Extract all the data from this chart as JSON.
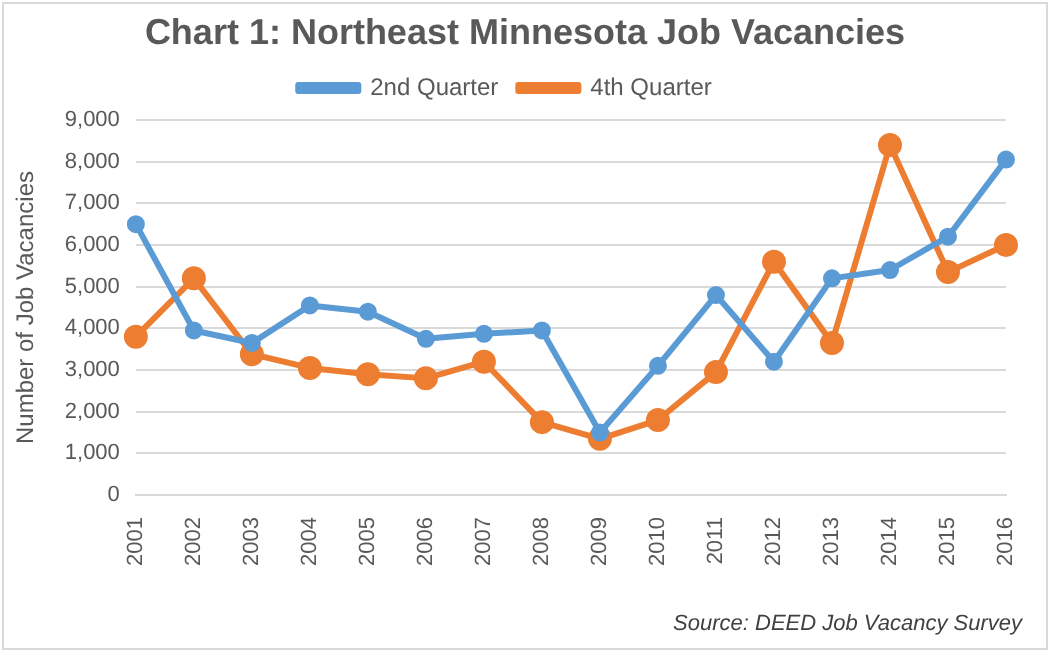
{
  "chart_data": {
    "type": "line",
    "title": "Chart 1: Northeast Minnesota Job Vacancies",
    "ylabel": "Number of Job Vacancies",
    "categories": [
      "2001",
      "2002",
      "2003",
      "2004",
      "2005",
      "2006",
      "2007",
      "2008",
      "2009",
      "2010",
      "2011",
      "2012",
      "2013",
      "2014",
      "2015",
      "2016"
    ],
    "series": [
      {
        "name": "2nd Quarter",
        "color": "#5b9bd5",
        "values": [
          6500,
          3950,
          3650,
          4550,
          4400,
          3750,
          3870,
          3950,
          1500,
          3100,
          4800,
          3200,
          5200,
          5400,
          6200,
          8050
        ]
      },
      {
        "name": "4th Quarter",
        "color": "#ed7d31",
        "values": [
          3800,
          5200,
          3380,
          3050,
          2900,
          2800,
          3200,
          1750,
          1350,
          1800,
          2950,
          5600,
          3650,
          8400,
          5350,
          6000
        ]
      }
    ],
    "ylim": [
      0,
      9000
    ],
    "yticks": [
      {
        "value": 0,
        "label": "0"
      },
      {
        "value": 1000,
        "label": "1,000"
      },
      {
        "value": 2000,
        "label": "2,000"
      },
      {
        "value": 3000,
        "label": "3,000"
      },
      {
        "value": 4000,
        "label": "4,000"
      },
      {
        "value": 5000,
        "label": "5,000"
      },
      {
        "value": 6000,
        "label": "6,000"
      },
      {
        "value": 7000,
        "label": "7,000"
      },
      {
        "value": 8000,
        "label": "8,000"
      },
      {
        "value": 9000,
        "label": "9,000"
      }
    ],
    "grid": "y",
    "legend": "top",
    "marker": "circle",
    "line_style": "solid",
    "annotations": [
      "Source: DEED Job Vacancy Survey"
    ]
  }
}
